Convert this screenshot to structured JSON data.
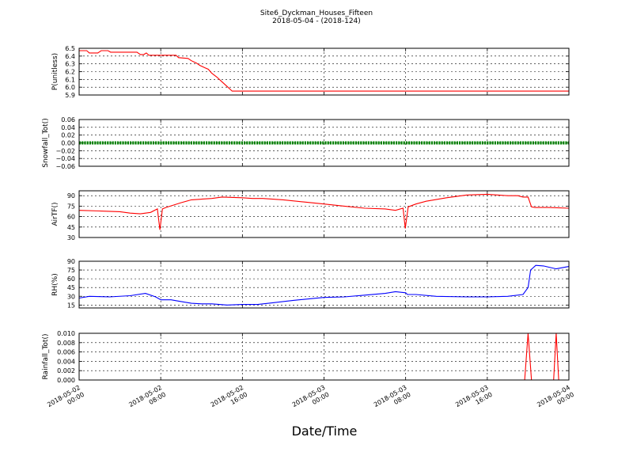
{
  "chart_data": {
    "type": "line",
    "title": "Site6_Dyckman_Houses_Fifteen",
    "subtitle": "2018-05-04 - (2018-124)",
    "xlabel": "Date/Time",
    "xlim": [
      "2018-05-02 00:00",
      "2018-05-04 00:00"
    ],
    "x_ticks": [
      "2018-05-02 00:00",
      "2018-05-02 08:00",
      "2018-05-02 16:00",
      "2018-05-03 00:00",
      "2018-05-03 08:00",
      "2018-05-03 16:00",
      "2018-05-04 00:00"
    ],
    "x_tick_labels": [
      [
        "2018-05-02",
        "00:00"
      ],
      [
        "2018-05-02",
        "08:00"
      ],
      [
        "2018-05-02",
        "16:00"
      ],
      [
        "2018-05-03",
        "00:00"
      ],
      [
        "2018-05-03",
        "08:00"
      ],
      [
        "2018-05-03",
        "16:00"
      ],
      [
        "2018-05-04",
        "00:00"
      ]
    ],
    "grid": true,
    "panels": [
      {
        "ylabel": "P(unitless)",
        "color": "#ff0000",
        "style": "line",
        "ylim": [
          5.9,
          6.5
        ],
        "yticks": [
          "5.9",
          "6.0",
          "6.1",
          "6.2",
          "6.3",
          "6.4",
          "6.5"
        ],
        "series": {
          "x": [
            "2018-05-02 00:00",
            "2018-05-02 00:45",
            "2018-05-02 01:00",
            "2018-05-02 01:50",
            "2018-05-02 02:10",
            "2018-05-02 02:50",
            "2018-05-02 03:05",
            "2018-05-02 05:40",
            "2018-05-02 06:00",
            "2018-05-02 06:20",
            "2018-05-02 06:35",
            "2018-05-02 06:50",
            "2018-05-02 07:10",
            "2018-05-02 09:30",
            "2018-05-02 09:45",
            "2018-05-02 10:40",
            "2018-05-02 11:00",
            "2018-05-02 11:30",
            "2018-05-02 11:50",
            "2018-05-02 12:20",
            "2018-05-02 12:40",
            "2018-05-02 13:00",
            "2018-05-02 13:30",
            "2018-05-02 14:00",
            "2018-05-02 14:30",
            "2018-05-02 15:00",
            "2018-05-04 00:00"
          ],
          "y": [
            6.47,
            6.47,
            6.44,
            6.44,
            6.47,
            6.47,
            6.45,
            6.45,
            6.42,
            6.42,
            6.44,
            6.41,
            6.41,
            6.41,
            6.38,
            6.37,
            6.34,
            6.31,
            6.28,
            6.25,
            6.23,
            6.18,
            6.13,
            6.07,
            6.01,
            5.95,
            5.95
          ]
        }
      },
      {
        "ylabel": "Snowfall_Tot()",
        "color": "#008000",
        "style": "dots",
        "ylim": [
          -0.06,
          0.06
        ],
        "yticks": [
          "−0.06",
          "−0.04",
          "−0.02",
          "0.00",
          "0.02",
          "0.04",
          "0.06"
        ],
        "series": {
          "x": [
            "2018-05-02 00:00",
            "2018-05-04 00:00"
          ],
          "y": [
            0.0,
            0.0
          ]
        }
      },
      {
        "ylabel": "AirTF()",
        "color": "#ff0000",
        "style": "line",
        "ylim": [
          30,
          97
        ],
        "yticks": [
          "30",
          "45",
          "60",
          "75",
          "90"
        ],
        "series": {
          "x": [
            "2018-05-02 00:00",
            "2018-05-02 02:00",
            "2018-05-02 04:00",
            "2018-05-02 05:00",
            "2018-05-02 06:00",
            "2018-05-02 07:00",
            "2018-05-02 07:40",
            "2018-05-02 07:55",
            "2018-05-02 08:10",
            "2018-05-02 08:30",
            "2018-05-02 10:00",
            "2018-05-02 11:00",
            "2018-05-02 13:00",
            "2018-05-02 14:00",
            "2018-05-02 16:00",
            "2018-05-02 17:00",
            "2018-05-02 18:00",
            "2018-05-02 20:00",
            "2018-05-02 22:00",
            "2018-05-03 00:00",
            "2018-05-03 02:00",
            "2018-05-03 04:00",
            "2018-05-03 06:00",
            "2018-05-03 07:00",
            "2018-05-03 07:45",
            "2018-05-03 07:58",
            "2018-05-03 08:15",
            "2018-05-03 09:00",
            "2018-05-03 10:00",
            "2018-05-03 12:00",
            "2018-05-03 14:00",
            "2018-05-03 16:00",
            "2018-05-03 17:00",
            "2018-05-03 18:00",
            "2018-05-03 19:00",
            "2018-05-03 19:30",
            "2018-05-03 20:00",
            "2018-05-03 20:20",
            "2018-05-03 20:40",
            "2018-05-03 22:00",
            "2018-05-04 00:00"
          ],
          "y": [
            69,
            68,
            67,
            65,
            64,
            66,
            71,
            41,
            71,
            73,
            80,
            84,
            86,
            88,
            87,
            86,
            86,
            84,
            81,
            78,
            75,
            72,
            71,
            69,
            72,
            43,
            74,
            78,
            82,
            87,
            91,
            92,
            91,
            90,
            90,
            88,
            88,
            74,
            73,
            73,
            72
          ]
        }
      },
      {
        "ylabel": "RH(%)",
        "color": "#0000ff",
        "style": "line",
        "ylim": [
          10,
          90
        ],
        "yticks": [
          "15",
          "30",
          "45",
          "60",
          "75",
          "90"
        ],
        "series": {
          "x": [
            "2018-05-02 00:00",
            "2018-05-02 01:00",
            "2018-05-02 03:00",
            "2018-05-02 05:00",
            "2018-05-02 06:30",
            "2018-05-02 07:30",
            "2018-05-02 08:00",
            "2018-05-02 09:00",
            "2018-05-02 10:00",
            "2018-05-02 11:00",
            "2018-05-02 12:00",
            "2018-05-02 13:00",
            "2018-05-02 14:30",
            "2018-05-02 16:00",
            "2018-05-02 17:30",
            "2018-05-02 19:00",
            "2018-05-02 21:00",
            "2018-05-03 00:00",
            "2018-05-03 02:00",
            "2018-05-03 04:00",
            "2018-05-03 06:00",
            "2018-05-03 07:00",
            "2018-05-03 08:00",
            "2018-05-03 08:10",
            "2018-05-03 09:00",
            "2018-05-03 11:00",
            "2018-05-03 14:00",
            "2018-05-03 16:00",
            "2018-05-03 18:00",
            "2018-05-03 19:30",
            "2018-05-03 20:00",
            "2018-05-03 20:15",
            "2018-05-03 20:45",
            "2018-05-03 21:30",
            "2018-05-03 22:00",
            "2018-05-03 22:45",
            "2018-05-04 00:00"
          ],
          "y": [
            27,
            30,
            29,
            31,
            35,
            29,
            24,
            24,
            21,
            18,
            17,
            17,
            15,
            16,
            16,
            19,
            23,
            28,
            29,
            32,
            35,
            38,
            36,
            33,
            33,
            30,
            29,
            29,
            30,
            33,
            45,
            75,
            83,
            82,
            80,
            77,
            81
          ]
        }
      },
      {
        "ylabel": "Rainfall_Tot()",
        "color": "#ff0000",
        "style": "line",
        "ylim": [
          0.0,
          0.01
        ],
        "yticks": [
          "0.000",
          "0.002",
          "0.004",
          "0.006",
          "0.008",
          "0.010"
        ],
        "series": {
          "x": [
            "2018-05-02 00:00",
            "2018-05-03 19:40",
            "2018-05-03 20:00",
            "2018-05-03 20:20",
            "2018-05-03 22:30",
            "2018-05-03 22:45",
            "2018-05-03 23:00",
            "2018-05-04 00:00"
          ],
          "y": [
            0.0,
            0.0,
            0.01,
            0.0,
            0.0,
            0.01,
            0.0,
            0.0
          ]
        }
      }
    ]
  }
}
